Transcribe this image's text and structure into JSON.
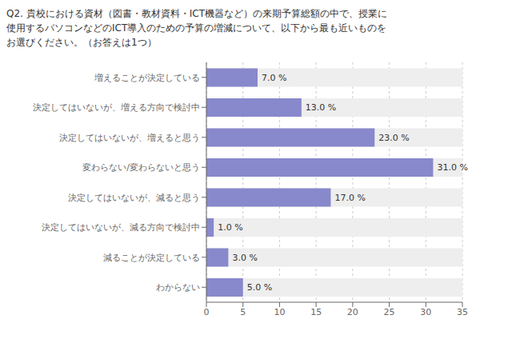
{
  "chart_data": {
    "type": "bar",
    "title": "Q2. 貴校における資材（図書・教材資料・ICT機器など）の来期予算総額の中で、授業に\n使用するパソコンなどのICT導入のための予算の増減について、以下から最も近いものを\nお選びください。（お答えは1つ）",
    "categories": [
      "増えることが決定している",
      "決定してはいないが、増える方向で検討中",
      "決定してはいないが、増えると思う",
      "変わらない/変わらないと思う",
      "決定してはいないが、減ると思う",
      "決定してはいないが、減る方向で検討中",
      "減ることが決定している",
      "わからない"
    ],
    "values": [
      7.0,
      13.0,
      23.0,
      31.0,
      17.0,
      1.0,
      3.0,
      5.0
    ],
    "value_labels": [
      "7.0 %",
      "13.0 %",
      "23.0 %",
      "31.0 %",
      "17.0 %",
      "1.0 %",
      "3.0 %",
      "5.0 %"
    ],
    "color": "#8888cc",
    "orientation": "horizontal",
    "xlim": [
      0,
      35
    ],
    "xticks": [
      0,
      5,
      10,
      15,
      20,
      25,
      30,
      35
    ],
    "grid": true,
    "data_labels": true
  }
}
